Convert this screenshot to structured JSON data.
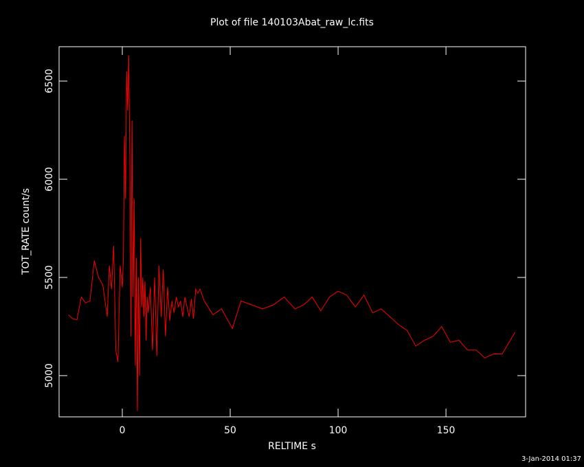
{
  "chart_data": {
    "type": "line",
    "title": "Plot of file 140103Abat_raw_lc.fits",
    "xlabel": "RELTIME  s",
    "ylabel": "TOT_RATE  count/s",
    "footer": "3-Jan-2014 01:37",
    "xlim": [
      -29.3,
      186.9
    ],
    "ylim": [
      4790,
      6675
    ],
    "xticks": [
      0,
      50,
      100,
      150
    ],
    "yticks": [
      5000,
      5500,
      6000,
      6500
    ],
    "series": [
      {
        "name": "TOT_RATE",
        "color": "#ff0000",
        "x": [
          -25,
          -23,
          -21,
          -19,
          -17,
          -15,
          -13,
          -11,
          -9,
          -7,
          -6,
          -5,
          -4,
          -3,
          -2,
          -1,
          0,
          0.5,
          1,
          1.5,
          2,
          2.5,
          3,
          3.5,
          4,
          4.5,
          5,
          5.5,
          6,
          6.5,
          7,
          7.5,
          8,
          8.5,
          9,
          9.5,
          10,
          10.5,
          11,
          11.5,
          12,
          13,
          14,
          15,
          16,
          17,
          18,
          19,
          20,
          21,
          22,
          23,
          24,
          25,
          26,
          27,
          28,
          29,
          30,
          31,
          32,
          33,
          34,
          35,
          36,
          38,
          42,
          46,
          51,
          55,
          60,
          65,
          70,
          75,
          80,
          84,
          88,
          92,
          96,
          100,
          104,
          108,
          112,
          116,
          120,
          124,
          128,
          132,
          136,
          140,
          144,
          148,
          152,
          156,
          160,
          164,
          168,
          172,
          176,
          182
        ],
        "values": [
          5310,
          5290,
          5285,
          5400,
          5370,
          5380,
          5585,
          5500,
          5460,
          5300,
          5560,
          5440,
          5660,
          5130,
          5070,
          5560,
          5450,
          5600,
          6220,
          5900,
          6550,
          6350,
          6630,
          6100,
          5200,
          6300,
          5400,
          5900,
          5050,
          5600,
          4820,
          5500,
          5000,
          5700,
          5350,
          5500,
          5300,
          5480,
          5180,
          5400,
          5320,
          5450,
          5130,
          5500,
          5100,
          5560,
          5300,
          5540,
          5200,
          5450,
          5280,
          5380,
          5320,
          5400,
          5350,
          5380,
          5300,
          5400,
          5350,
          5300,
          5390,
          5290,
          5440,
          5420,
          5440,
          5380,
          5310,
          5340,
          5240,
          5380,
          5360,
          5340,
          5360,
          5400,
          5340,
          5360,
          5400,
          5330,
          5400,
          5430,
          5410,
          5350,
          5410,
          5320,
          5340,
          5300,
          5260,
          5230,
          5150,
          5180,
          5200,
          5250,
          5170,
          5180,
          5130,
          5130,
          5090,
          5110,
          5110,
          5220
        ]
      }
    ]
  }
}
